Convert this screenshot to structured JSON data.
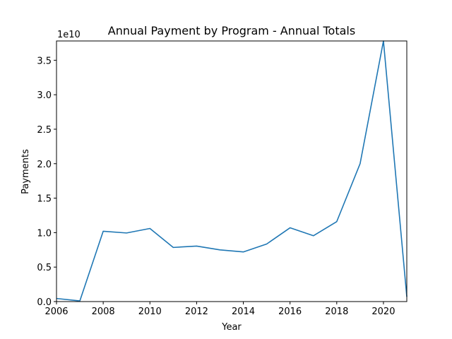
{
  "chart_data": {
    "type": "line",
    "title": "Annual Payment by Program - Annual Totals",
    "xlabel": "Year",
    "ylabel": "Payments",
    "y_offset_label": "1e10",
    "xlim": [
      2006,
      2021
    ],
    "ylim": [
      0,
      37800000000.0
    ],
    "grid": false,
    "legend": "none",
    "x_ticks": [
      2006,
      2008,
      2010,
      2012,
      2014,
      2016,
      2018,
      2020
    ],
    "x_tick_labels": [
      "2006",
      "2008",
      "2010",
      "2012",
      "2014",
      "2016",
      "2018",
      "2020"
    ],
    "y_ticks": [
      0,
      5000000000.0,
      10000000000.0,
      15000000000.0,
      20000000000.0,
      25000000000.0,
      30000000000.0,
      35000000000.0
    ],
    "y_tick_labels": [
      "0.0",
      "0.5",
      "1.0",
      "1.5",
      "2.0",
      "2.5",
      "3.0",
      "3.5"
    ],
    "series": [
      {
        "color": "#1f77b4",
        "x": [
          2006,
          2007,
          2008,
          2009,
          2010,
          2011,
          2012,
          2013,
          2014,
          2015,
          2016,
          2017,
          2018,
          2019,
          2020,
          2021
        ],
        "y": [
          450000000.0,
          100000000.0,
          10200000000.0,
          9950000000.0,
          10600000000.0,
          7850000000.0,
          8050000000.0,
          7500000000.0,
          7200000000.0,
          8350000000.0,
          10700000000.0,
          9550000000.0,
          11600000000.0,
          20000000000.0,
          37800000000.0,
          700000000.0
        ]
      }
    ]
  }
}
